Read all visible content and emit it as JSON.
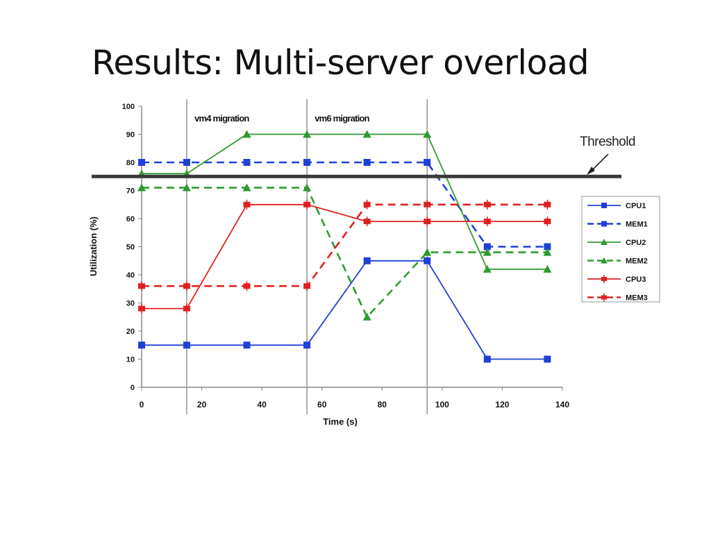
{
  "slide": {
    "title": "Results: Multi-server overload"
  },
  "chart_data": {
    "type": "line",
    "title": "",
    "xlabel": "Time (s)",
    "ylabel": "Utilization (%)",
    "xlim": [
      0,
      140
    ],
    "ylim": [
      0,
      100
    ],
    "x_ticks": [
      0,
      20,
      40,
      60,
      80,
      100,
      120,
      140
    ],
    "y_ticks": [
      0,
      10,
      20,
      30,
      40,
      50,
      60,
      70,
      80,
      90,
      100
    ],
    "grid": false,
    "legend_position": "right",
    "threshold": {
      "value": 75,
      "label": "Threshold"
    },
    "events": [
      {
        "time": 15,
        "label": ""
      },
      {
        "time": 55,
        "label": "vm4 migration"
      },
      {
        "time": 95,
        "label": "vm6 migration"
      }
    ],
    "series": [
      {
        "name": "CPU1",
        "color": "#1f3fd6",
        "dash": "solid",
        "marker": "square",
        "x": [
          0,
          15,
          35,
          55,
          75,
          95,
          115,
          135
        ],
        "y": [
          15,
          15,
          15,
          15,
          45,
          45,
          10,
          10
        ]
      },
      {
        "name": "MEM1",
        "color": "#1f3fd6",
        "dash": "dashed",
        "marker": "square",
        "x": [
          0,
          15,
          35,
          55,
          75,
          95,
          115,
          135
        ],
        "y": [
          80,
          80,
          80,
          80,
          80,
          80,
          50,
          50
        ]
      },
      {
        "name": "CPU2",
        "color": "#2e9a2e",
        "dash": "solid",
        "marker": "triangle",
        "x": [
          0,
          15,
          35,
          55,
          75,
          95,
          115,
          135
        ],
        "y": [
          76,
          76,
          90,
          90,
          90,
          90,
          42,
          42
        ]
      },
      {
        "name": "MEM2",
        "color": "#2e9a2e",
        "dash": "dashed",
        "marker": "triangle",
        "x": [
          0,
          15,
          35,
          55,
          75,
          95,
          115,
          135
        ],
        "y": [
          71,
          71,
          71,
          71,
          25,
          48,
          48,
          48
        ]
      },
      {
        "name": "CPU3",
        "color": "#e02020",
        "dash": "solid",
        "marker": "cross",
        "x": [
          0,
          15,
          35,
          55,
          75,
          95,
          115,
          135
        ],
        "y": [
          28,
          28,
          65,
          65,
          59,
          59,
          59,
          59
        ]
      },
      {
        "name": "MEM3",
        "color": "#e02020",
        "dash": "dashed",
        "marker": "cross",
        "x": [
          0,
          15,
          35,
          55,
          75,
          95,
          115,
          135
        ],
        "y": [
          36,
          36,
          36,
          36,
          65,
          65,
          65,
          65
        ]
      }
    ]
  }
}
